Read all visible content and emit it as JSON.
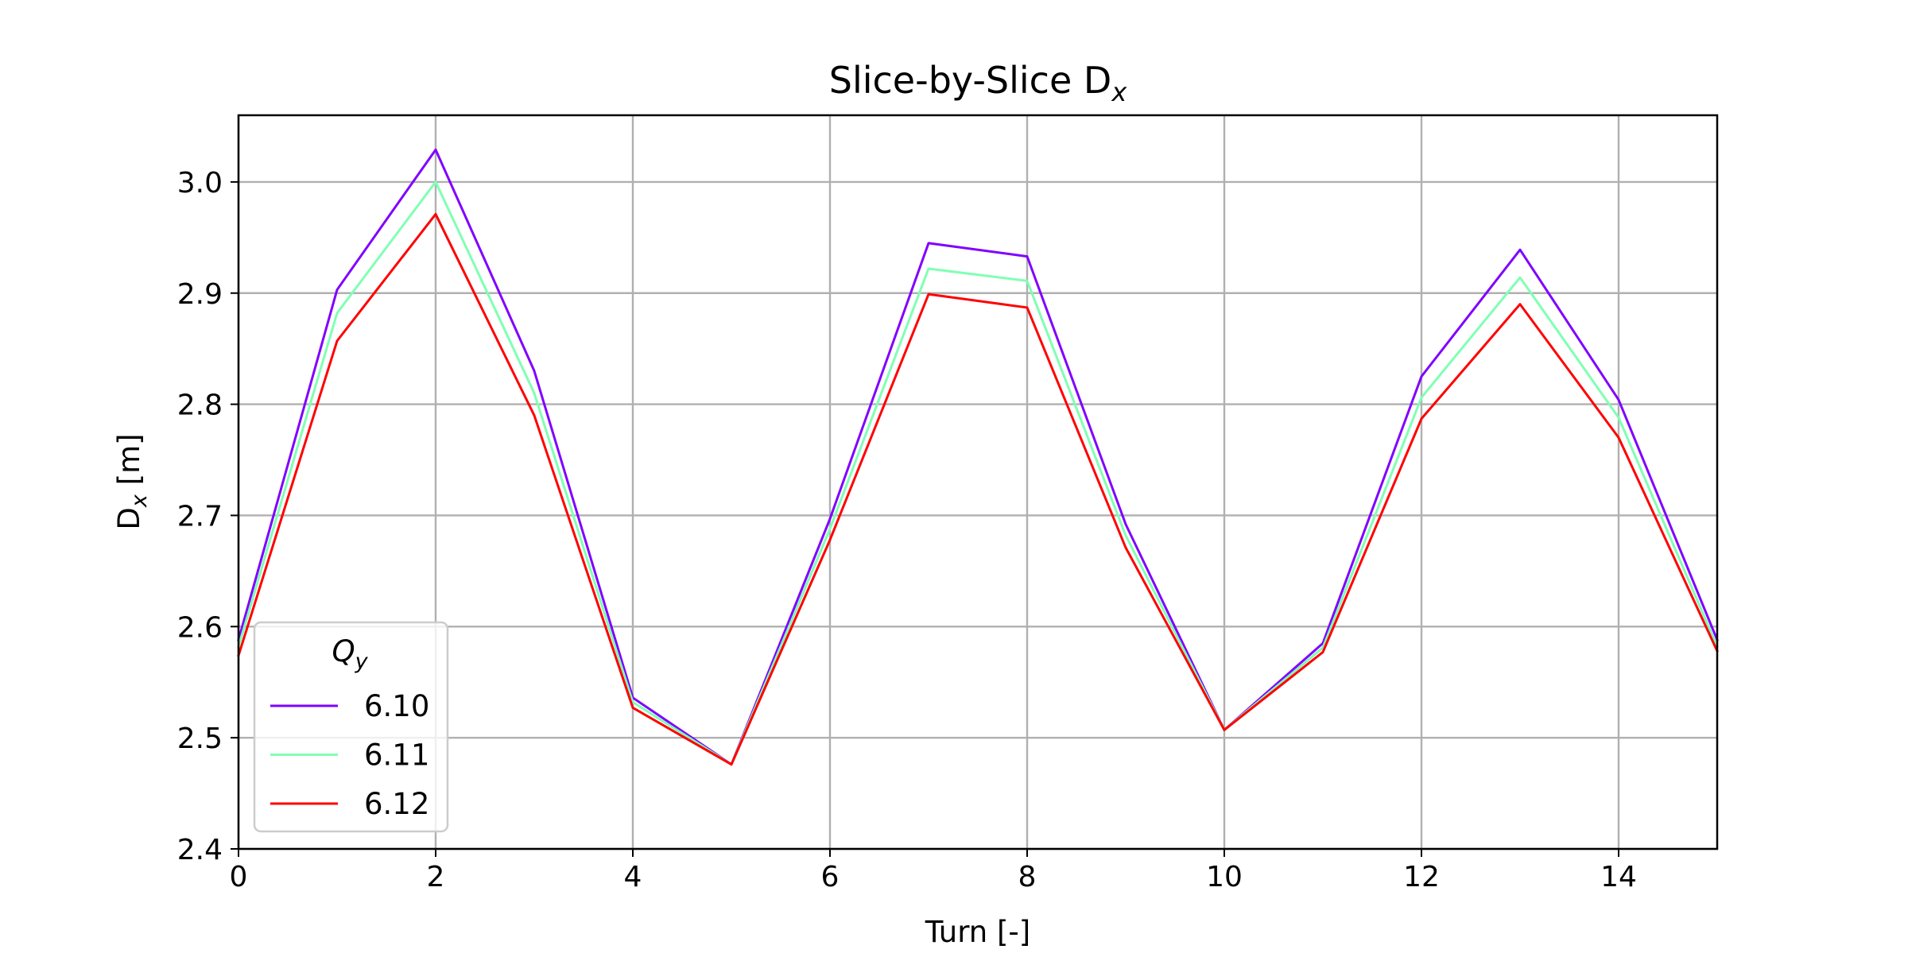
{
  "chart_data": {
    "type": "line",
    "title": "Slice-by-Slice D",
    "title_subscript": "x",
    "xlabel": "Turn [-]",
    "ylabel": "D",
    "ylabel_subscript": "x",
    "ylabel_unit": " [m]",
    "xlim": [
      0,
      15
    ],
    "ylim": [
      2.4,
      3.06
    ],
    "xticks": [
      0,
      2,
      4,
      6,
      8,
      10,
      12,
      14
    ],
    "yticks": [
      2.4,
      2.5,
      2.6,
      2.7,
      2.8,
      2.9,
      3.0
    ],
    "grid": true,
    "legend": {
      "title": "Q",
      "title_subscript": "y",
      "placement": "lower-left"
    },
    "x": [
      0,
      1,
      2,
      3,
      4,
      5,
      6,
      7,
      8,
      9,
      10,
      11,
      12,
      13,
      14,
      15
    ],
    "series": [
      {
        "name": "6.10",
        "color": "#8000ff",
        "values": [
          2.588,
          2.903,
          3.029,
          2.83,
          2.536,
          2.476,
          2.697,
          2.945,
          2.933,
          2.692,
          2.507,
          2.585,
          2.825,
          2.939,
          2.804,
          2.588
        ]
      },
      {
        "name": "6.11",
        "color": "#80ffb4",
        "values": [
          2.582,
          2.882,
          3.0,
          2.81,
          2.532,
          2.476,
          2.688,
          2.922,
          2.911,
          2.682,
          2.507,
          2.581,
          2.806,
          2.914,
          2.788,
          2.582
        ]
      },
      {
        "name": "6.12",
        "color": "#ff0000",
        "values": [
          2.574,
          2.857,
          2.971,
          2.79,
          2.527,
          2.476,
          2.678,
          2.899,
          2.887,
          2.671,
          2.507,
          2.577,
          2.787,
          2.89,
          2.77,
          2.578
        ]
      }
    ]
  }
}
